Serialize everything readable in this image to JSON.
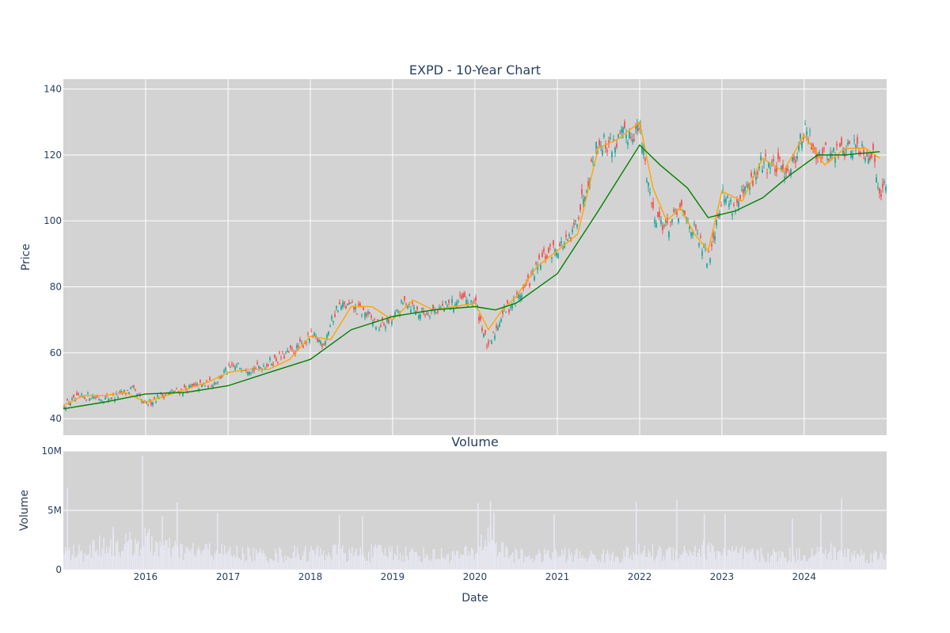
{
  "chart_data": [
    {
      "type": "candlestick",
      "title": "EXPD - 10-Year Chart",
      "xlabel": "",
      "ylabel": "Price",
      "ylim": [
        35,
        143
      ],
      "yticks": [
        40,
        60,
        80,
        100,
        120,
        140
      ],
      "x_years": [
        "2016",
        "2017",
        "2018",
        "2019",
        "2020",
        "2021",
        "2022",
        "2023",
        "2024"
      ],
      "xlim": [
        "2015-01-01",
        "2025-01-01"
      ],
      "grid": true,
      "colors": {
        "up": "#26a69a",
        "down": "#ef5350",
        "ma_short": "#ffa500",
        "ma_long": "#008000",
        "plot_bg": "#d3d3d3"
      },
      "series": [
        {
          "kind": "price",
          "x": [
            "2015-01",
            "2015-03",
            "2015-05",
            "2015-07",
            "2015-09",
            "2015-11",
            "2016-01",
            "2016-03",
            "2016-05",
            "2016-07",
            "2016-09",
            "2016-11",
            "2017-01",
            "2017-03",
            "2017-05",
            "2017-07",
            "2017-09",
            "2017-11",
            "2018-01",
            "2018-03",
            "2018-05",
            "2018-07",
            "2018-09",
            "2018-11",
            "2019-01",
            "2019-03",
            "2019-05",
            "2019-07",
            "2019-09",
            "2019-11",
            "2020-01",
            "2020-03",
            "2020-05",
            "2020-07",
            "2020-09",
            "2020-11",
            "2021-01",
            "2021-03",
            "2021-05",
            "2021-07",
            "2021-09",
            "2021-11",
            "2022-01",
            "2022-03",
            "2022-05",
            "2022-07",
            "2022-09",
            "2022-11",
            "2023-01",
            "2023-03",
            "2023-05",
            "2023-07",
            "2023-09",
            "2023-11",
            "2024-01",
            "2024-03",
            "2024-05",
            "2024-07",
            "2024-09",
            "2024-11",
            "2024-12"
          ],
          "values": [
            44,
            46,
            47,
            46,
            47,
            49,
            44,
            47,
            48,
            49,
            50,
            51,
            55,
            56,
            55,
            57,
            59,
            61,
            65,
            63,
            74,
            74,
            72,
            68,
            70,
            76,
            72,
            73,
            74,
            76,
            76,
            61,
            72,
            76,
            82,
            89,
            92,
            94,
            109,
            124,
            123,
            126,
            128,
            103,
            98,
            103,
            97,
            88,
            108,
            104,
            110,
            118,
            116,
            116,
            127,
            121,
            120,
            122,
            123,
            120,
            110
          ]
        },
        {
          "name": "",
          "kind": "ma_short",
          "x": [
            "2015-01",
            "2015-04",
            "2015-07",
            "2015-10",
            "2016-01",
            "2016-04",
            "2016-07",
            "2016-10",
            "2017-01",
            "2017-04",
            "2017-07",
            "2017-10",
            "2018-01",
            "2018-04",
            "2018-07",
            "2018-10",
            "2019-01",
            "2019-04",
            "2019-07",
            "2019-10",
            "2020-01",
            "2020-03",
            "2020-05",
            "2020-07",
            "2020-10",
            "2021-01",
            "2021-04",
            "2021-07",
            "2021-10",
            "2022-01",
            "2022-03",
            "2022-05",
            "2022-07",
            "2022-09",
            "2022-11",
            "2023-01",
            "2023-04",
            "2023-07",
            "2023-10",
            "2024-01",
            "2024-04",
            "2024-07",
            "2024-10",
            "2024-12"
          ],
          "values": [
            44,
            47,
            47,
            48,
            45,
            47,
            49,
            51,
            54,
            55,
            55,
            58,
            65,
            64,
            74,
            74,
            70,
            76,
            73,
            74,
            75,
            67,
            73,
            77,
            86,
            91,
            96,
            122,
            125,
            130,
            110,
            100,
            104,
            96,
            91,
            109,
            106,
            119,
            115,
            126,
            117,
            122,
            122,
            119
          ]
        },
        {
          "name": "",
          "kind": "ma_long",
          "x": [
            "2015-01",
            "2015-07",
            "2016-01",
            "2016-07",
            "2017-01",
            "2017-07",
            "2018-01",
            "2018-07",
            "2019-01",
            "2019-07",
            "2020-01",
            "2020-04",
            "2020-07",
            "2021-01",
            "2021-07",
            "2022-01",
            "2022-04",
            "2022-08",
            "2022-11",
            "2023-03",
            "2023-07",
            "2023-11",
            "2024-03",
            "2024-07",
            "2024-12"
          ],
          "values": [
            43,
            45,
            47.5,
            48,
            50,
            54,
            58,
            67,
            71,
            73,
            74,
            73,
            75,
            84,
            103,
            123,
            117,
            110,
            101,
            103,
            107,
            114,
            120,
            120,
            121
          ]
        }
      ]
    },
    {
      "type": "bar",
      "title": "Volume",
      "xlabel": "Date",
      "ylabel": "Volume",
      "ylim": [
        0,
        10000000
      ],
      "yticks": [
        0,
        5000000,
        10000000
      ],
      "ytick_labels": [
        "0",
        "5M",
        "10M"
      ],
      "x_years": [
        "2016",
        "2017",
        "2018",
        "2019",
        "2020",
        "2021",
        "2022",
        "2023",
        "2024"
      ],
      "grid": true,
      "colors": {
        "bar": "#e8e8f4",
        "plot_bg": "#d3d3d3"
      },
      "series": [
        {
          "name": "",
          "x": [
            "2015-01",
            "2015-04",
            "2015-07",
            "2015-10",
            "2016-01",
            "2016-04",
            "2016-07",
            "2016-10",
            "2017-01",
            "2017-04",
            "2017-07",
            "2017-10",
            "2018-01",
            "2018-04",
            "2018-07",
            "2018-10",
            "2019-01",
            "2019-04",
            "2019-07",
            "2019-10",
            "2020-01",
            "2020-03",
            "2020-05",
            "2020-07",
            "2020-10",
            "2021-01",
            "2021-04",
            "2021-07",
            "2021-10",
            "2022-01",
            "2022-04",
            "2022-07",
            "2022-10",
            "2023-01",
            "2023-04",
            "2023-07",
            "2023-10",
            "2024-01",
            "2024-04",
            "2024-07",
            "2024-10",
            "2024-12"
          ],
          "values": [
            1400000,
            1500000,
            2200000,
            2000000,
            2400000,
            1800000,
            1500000,
            1600000,
            1400000,
            1300000,
            1200000,
            1300000,
            1400000,
            1500000,
            1300000,
            1400000,
            1500000,
            1300000,
            1200000,
            1200000,
            1400000,
            3000000,
            1600000,
            1200000,
            1100000,
            1300000,
            1200000,
            1100000,
            1200000,
            1500000,
            1400000,
            1500000,
            1700000,
            1500000,
            1300000,
            1200000,
            1200000,
            1300000,
            1500000,
            1400000,
            1200000,
            1100000
          ]
        }
      ],
      "spikes": {
        "x": [
          "2015-01-20",
          "2015-08-10",
          "2015-12-18",
          "2016-03-15",
          "2016-05-20",
          "2016-11-15",
          "2018-05-10",
          "2018-08-20",
          "2020-01-15",
          "2020-03-10",
          "2020-03-25",
          "2020-12-18",
          "2021-12-17",
          "2022-06-15",
          "2022-10-15",
          "2023-01-15",
          "2023-11-10",
          "2024-03-15",
          "2024-06-15"
        ],
        "values": [
          6900000,
          3600000,
          9600000,
          4500000,
          5700000,
          4800000,
          4600000,
          4500000,
          5600000,
          5800000,
          4800000,
          4700000,
          5700000,
          5900000,
          4700000,
          4700000,
          4300000,
          4800000,
          6000000
        ]
      }
    }
  ]
}
